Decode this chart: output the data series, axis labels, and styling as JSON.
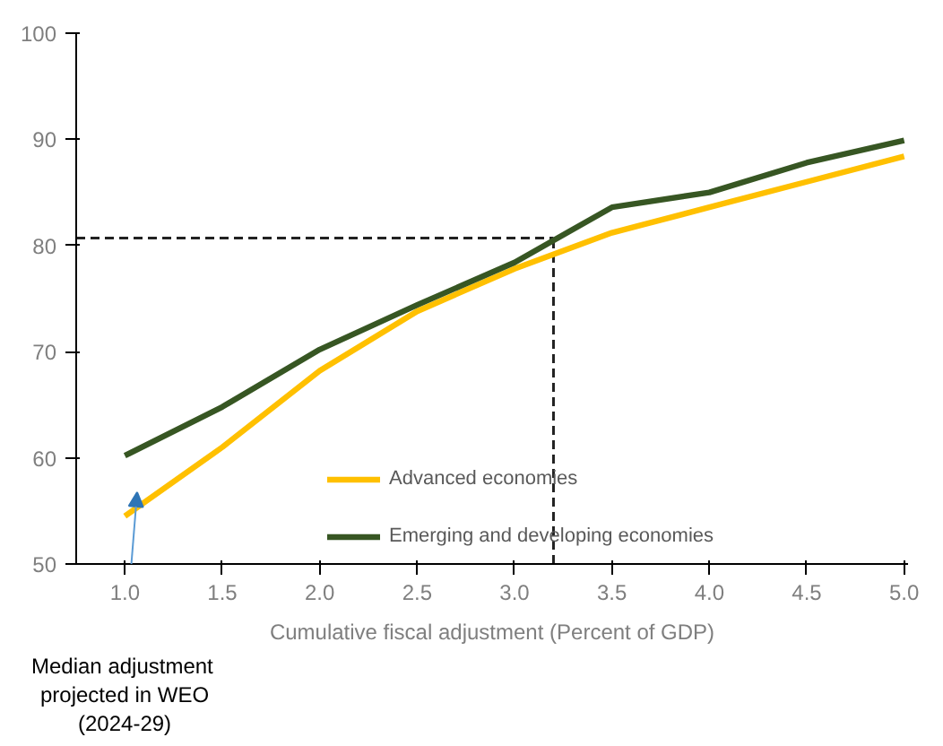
{
  "chart_data": {
    "type": "line",
    "xlabel": "Cumulative fiscal adjustment (Percent of GDP)",
    "x": [
      1.0,
      1.5,
      2.0,
      2.5,
      3.0,
      3.5,
      4.0,
      4.5,
      5.0
    ],
    "series": [
      {
        "name": "Advanced economies",
        "color": "#ffc000",
        "values": [
          54.5,
          61,
          68.2,
          73.8,
          77.8,
          81.2,
          83.6,
          86,
          88.4
        ]
      },
      {
        "name": "Emerging and developing economies",
        "color": "#375623",
        "values": [
          60.2,
          64.8,
          70.2,
          74.4,
          78.4,
          83.6,
          85,
          87.8,
          89.9
        ]
      }
    ],
    "xlim": [
      0.75,
      5.02
    ],
    "xticks": [
      {
        "value": 1.0,
        "label": "1.0"
      },
      {
        "value": 1.5,
        "label": "1.5"
      },
      {
        "value": 2.0,
        "label": "2.0"
      },
      {
        "value": 2.5,
        "label": "2.5"
      },
      {
        "value": 3.0,
        "label": "3.0"
      },
      {
        "value": 3.5,
        "label": "3.5"
      },
      {
        "value": 4.0,
        "label": "4.0"
      },
      {
        "value": 4.5,
        "label": "4.5"
      },
      {
        "value": 5.0,
        "label": "5.0"
      }
    ],
    "ylim": [
      50,
      100
    ],
    "yticks": [
      50,
      60,
      70,
      80,
      90,
      100
    ],
    "ref_lines": [
      {
        "axis": "x",
        "value": 3.2,
        "label": null,
        "color": "#222222",
        "line_style": "dashed"
      },
      {
        "axis": "y",
        "value": 80.7,
        "label": null,
        "color": "#222222",
        "line_style": "dashed"
      }
    ],
    "annotations": [
      "Median adjustment projected in WEO (2024-29)"
    ],
    "legend": "bottom",
    "grid": false,
    "marker": "none",
    "line_style": "solid"
  }
}
